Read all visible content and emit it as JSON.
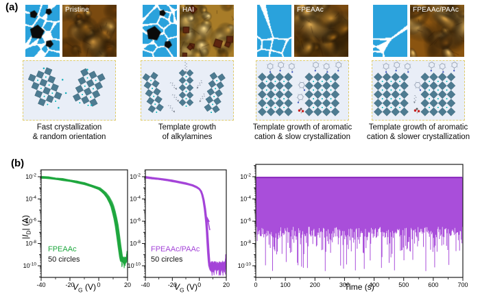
{
  "panel_a": {
    "label": "(a)",
    "groups": [
      {
        "afm_label": "Pristine",
        "caption": [
          "Fast crystallization",
          "& random orientation"
        ]
      },
      {
        "afm_label": "HAI",
        "caption": [
          "Template growth",
          "of alkylamines"
        ]
      },
      {
        "afm_label": "FPEAAc",
        "caption": [
          "Template growth of aromatic",
          "cation & slow crystallization"
        ]
      },
      {
        "afm_label": "FPEAAc/PAAc",
        "caption": [
          "Template growth of aromatic",
          "cation & slower crystallization"
        ]
      }
    ],
    "schematic_colors": {
      "grain_blue": "#2aa2dc",
      "boundary": "#ffffff",
      "pinhole": "#0a0a0a"
    }
  },
  "panel_b": {
    "label": "(b)"
  },
  "chart_data": [
    {
      "type": "line",
      "id": "transfer_FPEAAc",
      "xlabel_parts": {
        "it": "V",
        "sub": "G",
        "post": " (V)"
      },
      "ylabel_parts": {
        "pre": "|",
        "it": "I",
        "sub": "D",
        "post": "| (A)"
      },
      "xlim": [
        -40,
        20
      ],
      "xticks": [
        -40,
        -20,
        0,
        20
      ],
      "ylog": true,
      "ytick_exponents": [
        -2,
        -4,
        -6,
        -8,
        -10
      ],
      "ylim_exp": [
        -11,
        -1.4
      ],
      "legend": [
        "FPEAAc",
        "50 circles"
      ],
      "cycles": 50,
      "color": "#1ea73e",
      "series": [
        {
          "name": "FPEAAc transfer sweep",
          "x": [
            -40,
            -35,
            -30,
            -25,
            -20,
            -15,
            -10,
            -5,
            0,
            2,
            4,
            6,
            8,
            9,
            10,
            11,
            12,
            13,
            14,
            15,
            15.5
          ],
          "logI": [
            -2.05,
            -2.1,
            -2.17,
            -2.25,
            -2.35,
            -2.47,
            -2.62,
            -2.82,
            -3.08,
            -3.25,
            -3.5,
            -3.85,
            -4.35,
            -4.7,
            -5.15,
            -5.7,
            -6.4,
            -7.3,
            -8.3,
            -9.2,
            -9.5
          ]
        }
      ],
      "floor": {
        "start_V": 15.5,
        "base_logI": -9.45,
        "noise": 0.5,
        "end_rise_logI": -8.8
      },
      "annotation": "sweep-direction-arrow-up"
    },
    {
      "type": "line",
      "id": "transfer_FPEAAc_PAAc",
      "xlabel_parts": {
        "it": "V",
        "sub": "G",
        "post": " (V)"
      },
      "xlim": [
        -40,
        20
      ],
      "xticks": [
        -40,
        -20,
        0,
        20
      ],
      "ylog": true,
      "ytick_exponents": [
        -2,
        -4,
        -6,
        -8,
        -10
      ],
      "ylim_exp": [
        -11,
        -1.4
      ],
      "legend": [
        "FPEAAc/PAAc",
        "50 circles"
      ],
      "cycles": 50,
      "color": "#a444d8",
      "series": [
        {
          "name": "FPEAAc/PAAc transfer sweep",
          "x": [
            -40,
            -35,
            -30,
            -25,
            -20,
            -15,
            -10,
            -5,
            -2,
            0,
            1,
            2,
            3,
            4,
            5,
            5.5,
            6,
            6.5,
            7,
            7.5
          ],
          "logI": [
            -2.05,
            -2.12,
            -2.2,
            -2.29,
            -2.38,
            -2.49,
            -2.6,
            -2.78,
            -2.95,
            -3.12,
            -3.3,
            -3.6,
            -4.1,
            -4.9,
            -6.0,
            -6.8,
            -7.8,
            -8.8,
            -9.6,
            -10.1
          ]
        }
      ],
      "floor": {
        "start_V": 7.5,
        "base_logI": -10.0,
        "noise": 0.8,
        "end_rise_logI": -9.1
      },
      "annotation": "sweep-direction-arrow-up"
    },
    {
      "type": "line",
      "id": "endurance_cycling",
      "xlabel": "Time (s)",
      "xlim": [
        0,
        700
      ],
      "xticks": [
        0,
        100,
        200,
        300,
        400,
        500,
        600,
        700
      ],
      "ylog": true,
      "ytick_exponents": [
        -2,
        -4,
        -6,
        -8,
        -10
      ],
      "ylim_exp": [
        -11,
        -0.9
      ],
      "color": "#a444d8",
      "edge_color": "#8e2fc0",
      "on_logI": -2.07,
      "period_s": 2,
      "duration_s": 700,
      "off_logI_typical": [
        -7.5,
        -6.5
      ],
      "off_logI_extremes": [
        -10.5,
        -7.5
      ]
    }
  ]
}
